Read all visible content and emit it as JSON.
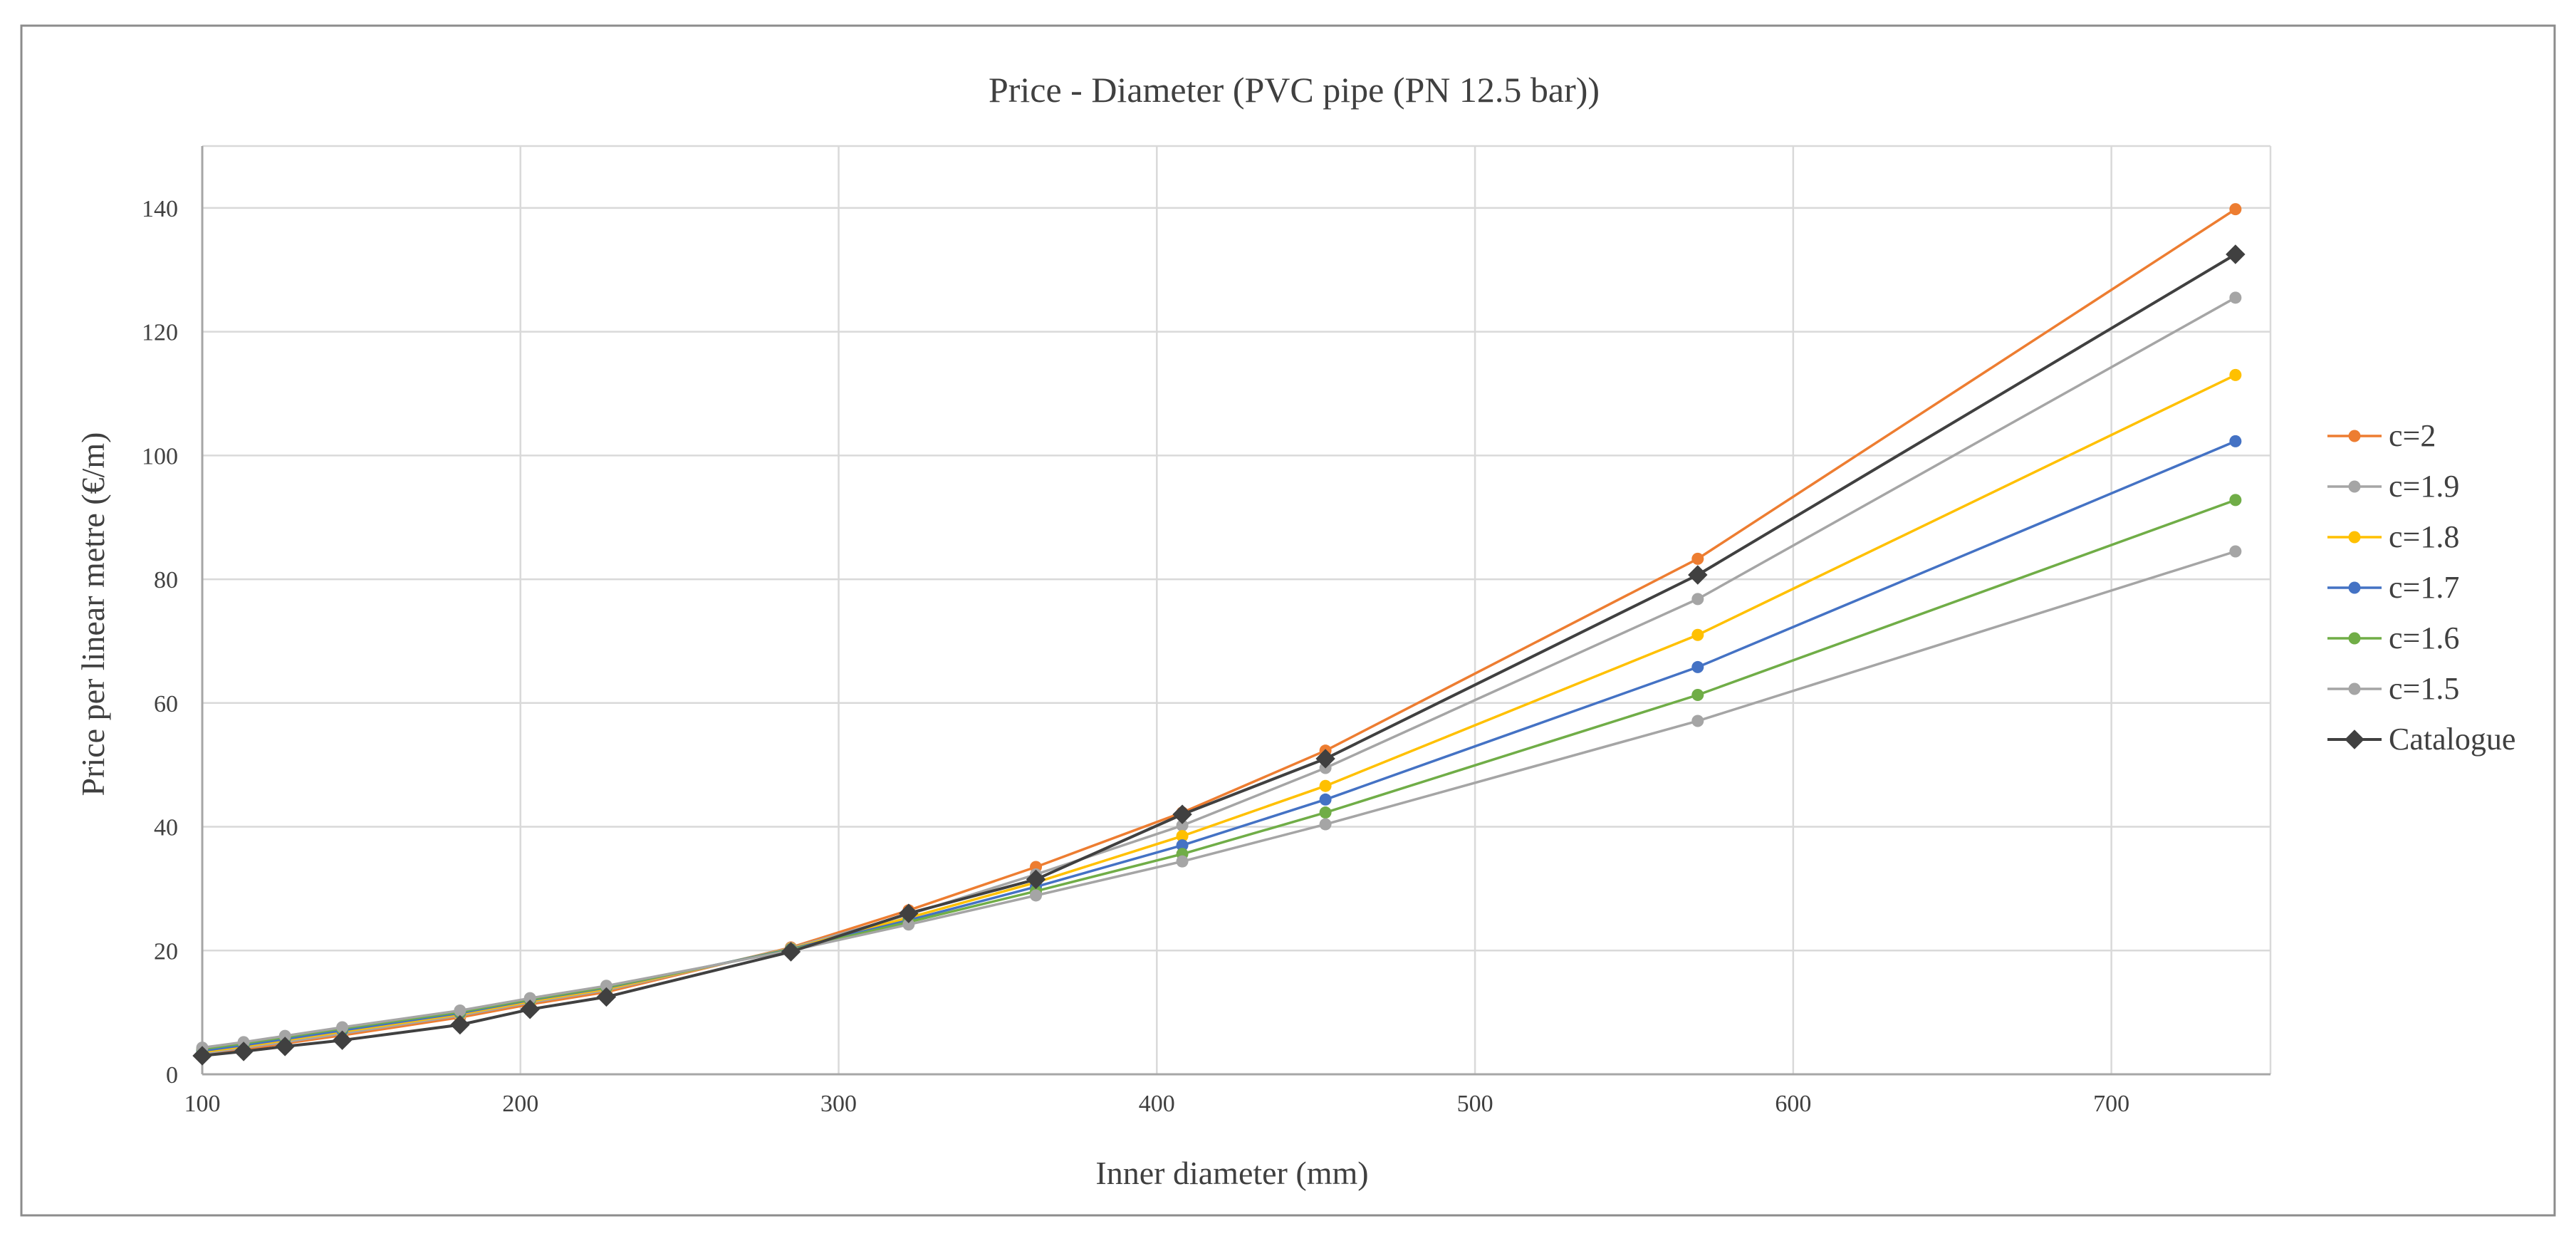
{
  "chart_data": {
    "type": "line",
    "title": "Price - Diameter (PVC pipe (PN 12.5 bar))",
    "xlabel": "Inner diameter (mm)",
    "ylabel": "Price per linear metre (€/m)",
    "xlim": [
      100,
      750
    ],
    "ylim": [
      0,
      150
    ],
    "xticks": [
      100,
      200,
      300,
      400,
      500,
      600,
      700
    ],
    "yticks": [
      0,
      20,
      40,
      60,
      80,
      100,
      120,
      140
    ],
    "grid": true,
    "legend_position": "right",
    "x": [
      100,
      113,
      126,
      144,
      181,
      203,
      227,
      285,
      322,
      362,
      408,
      453,
      570,
      739
    ],
    "series": [
      {
        "name": "c=2",
        "color": "#ED7D31",
        "marker": "circle",
        "values": [
          3.2,
          4.0,
          5.0,
          6.3,
          9.2,
          11.3,
          13.3,
          20.5,
          26.5,
          33.5,
          42.3,
          52.3,
          83.3,
          139.8
        ]
      },
      {
        "name": "c=1.9",
        "color": "#A5A5A5",
        "marker": "circle",
        "values": [
          3.4,
          4.3,
          5.2,
          6.6,
          9.5,
          11.6,
          13.6,
          20.4,
          25.8,
          32.3,
          40.2,
          49.5,
          76.8,
          125.5
        ]
      },
      {
        "name": "c=1.8",
        "color": "#FFC000",
        "marker": "circle",
        "values": [
          3.6,
          4.5,
          5.5,
          6.9,
          9.7,
          11.8,
          13.8,
          20.3,
          25.3,
          31.0,
          38.5,
          46.6,
          71.0,
          113.0
        ]
      },
      {
        "name": "c=1.7",
        "color": "#4472C4",
        "marker": "circle",
        "values": [
          3.8,
          4.7,
          5.7,
          7.1,
          9.9,
          12.0,
          14.0,
          20.2,
          24.9,
          30.3,
          37.0,
          44.4,
          65.8,
          102.3
        ]
      },
      {
        "name": "c=1.6",
        "color": "#70AD47",
        "marker": "circle",
        "values": [
          4.1,
          5.0,
          6.0,
          7.4,
          10.1,
          12.1,
          14.1,
          20.1,
          24.6,
          29.6,
          35.6,
          42.3,
          61.3,
          92.8
        ]
      },
      {
        "name": "c=1.5",
        "color": "#A5A5A5",
        "marker": "circle",
        "values": [
          4.3,
          5.2,
          6.2,
          7.6,
          10.3,
          12.3,
          14.3,
          20.0,
          24.2,
          28.9,
          34.4,
          40.4,
          57.1,
          84.5
        ]
      },
      {
        "name": "Catalogue",
        "color": "#404040",
        "marker": "diamond",
        "values": [
          3.0,
          3.7,
          4.5,
          5.5,
          8.0,
          10.5,
          12.5,
          19.8,
          26.0,
          31.5,
          42.0,
          51.0,
          80.7,
          132.5
        ]
      }
    ]
  }
}
